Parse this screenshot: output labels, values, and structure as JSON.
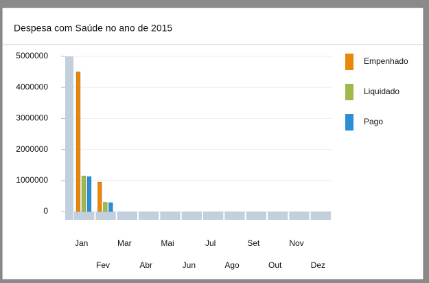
{
  "chart_data": {
    "type": "bar",
    "title": "Despesa com Saúde no ano de 2015",
    "categories": [
      "Jan",
      "Fev",
      "Mar",
      "Abr",
      "Mai",
      "Jun",
      "Jul",
      "Ago",
      "Set",
      "Out",
      "Nov",
      "Dez"
    ],
    "series": [
      {
        "name": "Empenhado",
        "color": "#e8870a",
        "values": [
          4500000,
          950000,
          0,
          0,
          0,
          0,
          0,
          0,
          0,
          0,
          0,
          0
        ]
      },
      {
        "name": "Liquidado",
        "color": "#9dba4a",
        "values": [
          1150000,
          300000,
          0,
          0,
          0,
          0,
          0,
          0,
          0,
          0,
          0,
          0
        ]
      },
      {
        "name": "Pago",
        "color": "#2a8fd6",
        "values": [
          1130000,
          290000,
          0,
          0,
          0,
          0,
          0,
          0,
          0,
          0,
          0,
          0
        ]
      }
    ],
    "ylim": [
      0,
      5000000
    ],
    "yticks": [
      0,
      1000000,
      2000000,
      3000000,
      4000000,
      5000000
    ],
    "grid": true,
    "legend": "right"
  }
}
